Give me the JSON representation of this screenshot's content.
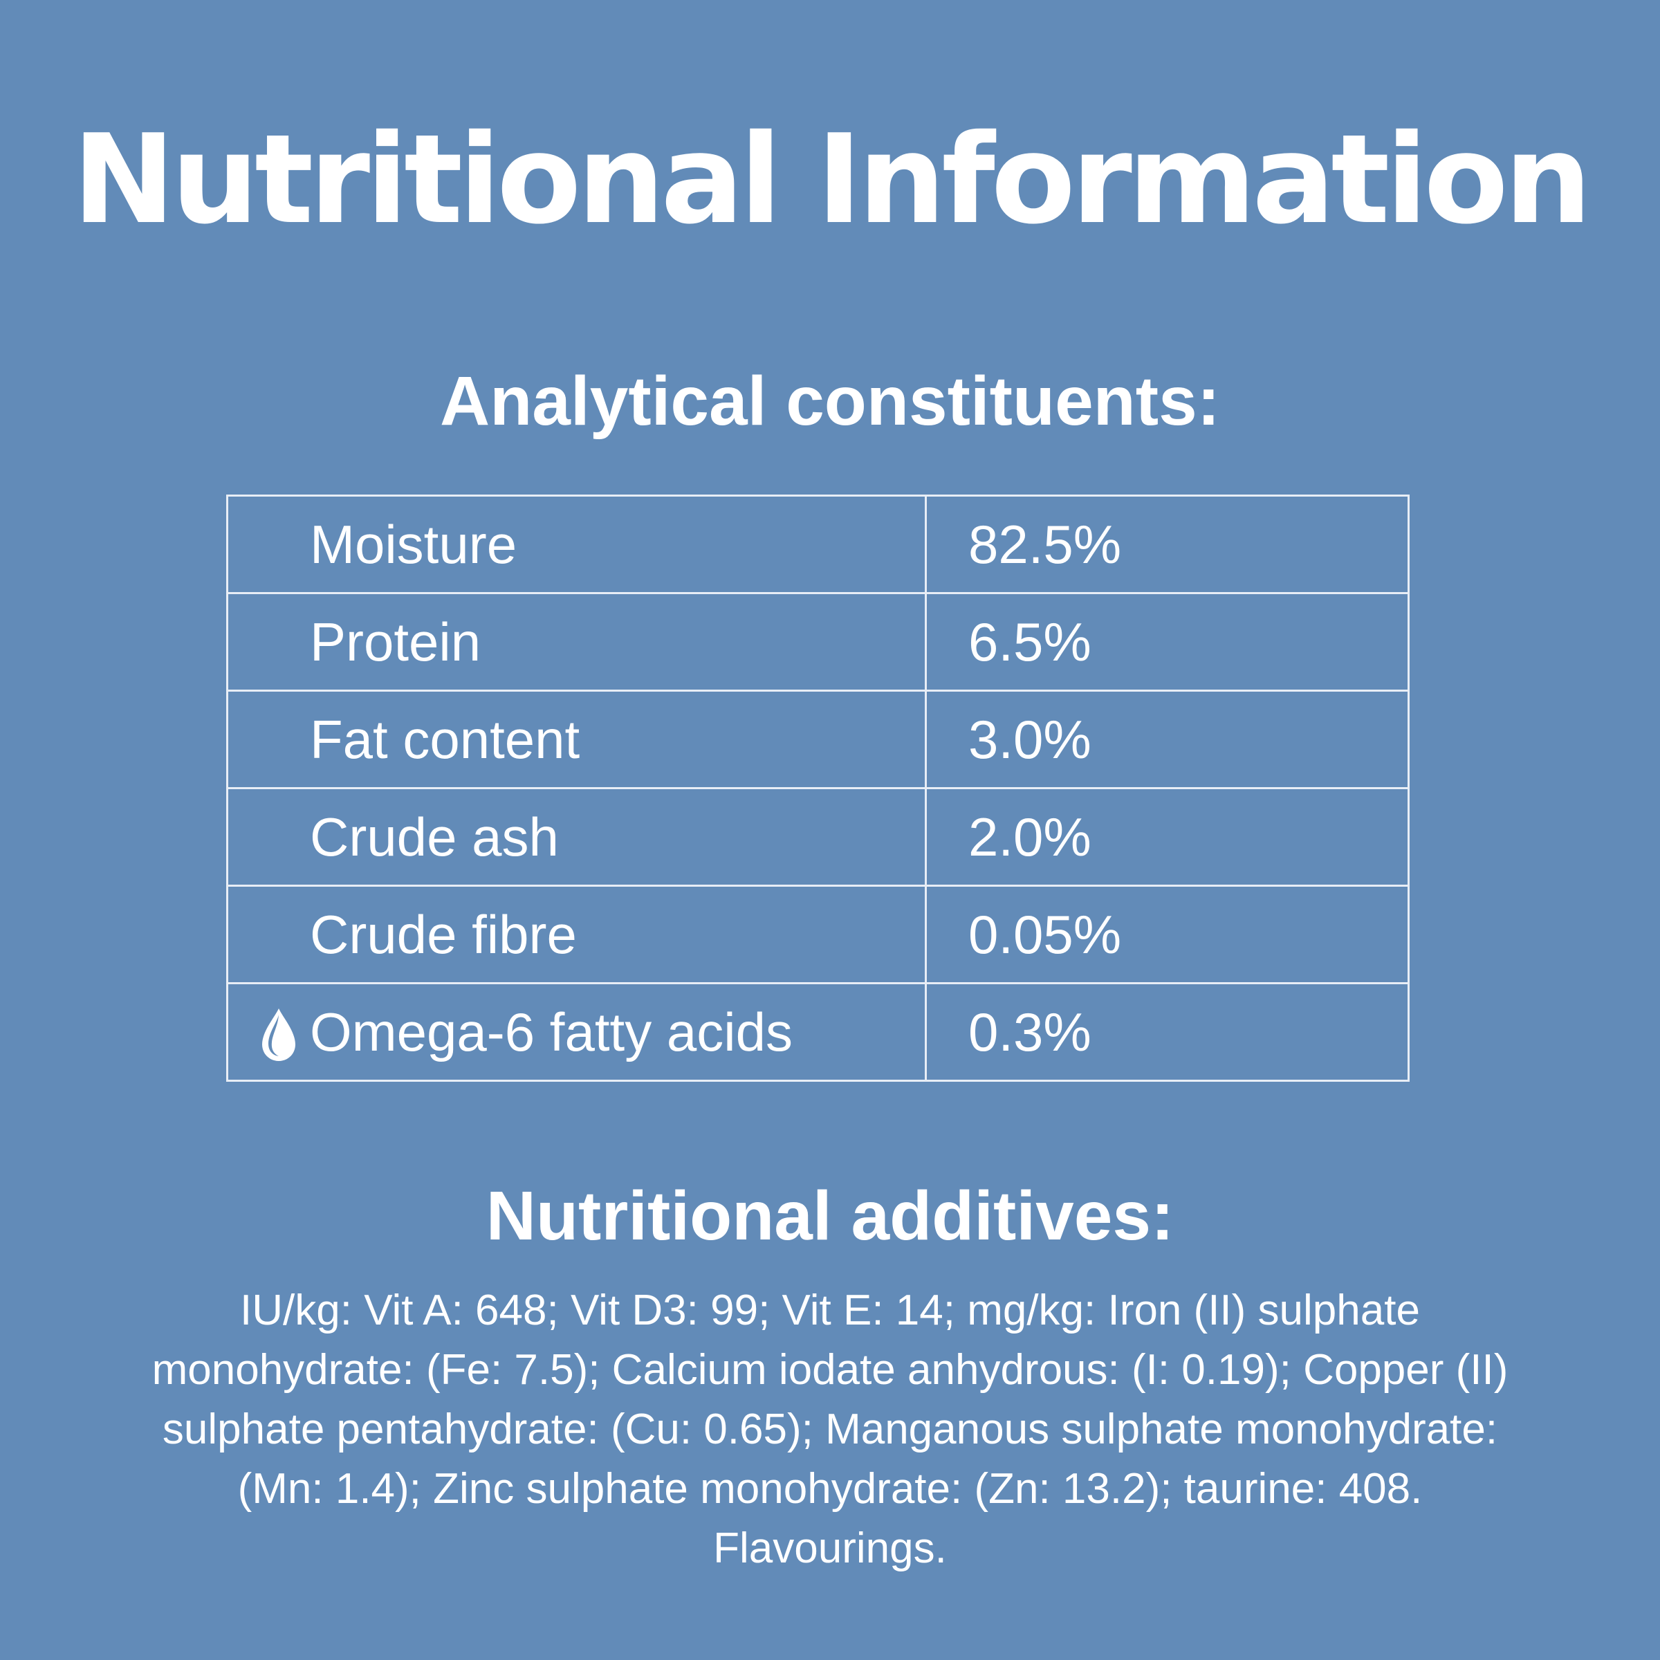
{
  "title": "Nutritional Information",
  "analytical": {
    "heading": "Analytical constituents:",
    "rows": [
      {
        "name": "Moisture",
        "value": "82.5%",
        "icon": ""
      },
      {
        "name": "Protein",
        "value": "6.5%",
        "icon": ""
      },
      {
        "name": "Fat content",
        "value": "3.0%",
        "icon": ""
      },
      {
        "name": "Crude ash",
        "value": "2.0%",
        "icon": ""
      },
      {
        "name": "Crude fibre",
        "value": "0.05%",
        "icon": ""
      },
      {
        "name": "Omega-6 fatty acids",
        "value": "0.3%",
        "icon": "water-drop-icon"
      }
    ]
  },
  "additives": {
    "heading": "Nutritional additives:",
    "text": "IU/kg: Vit A: 648; Vit D3: 99; Vit E: 14; mg/kg: Iron (II) sulphate monohydrate: (Fe: 7.5); Calcium iodate anhydrous: (I: 0.19); Copper (II) sulphate pentahydrate: (Cu: 0.65); Manganous sulphate monohydrate: (Mn: 1.4); Zinc sulphate monohydrate: (Zn: 13.2); taurine: 408. Flavourings."
  },
  "colors": {
    "background": "#628bb8",
    "text": "#ffffff",
    "table_border": "#e8eef6"
  }
}
